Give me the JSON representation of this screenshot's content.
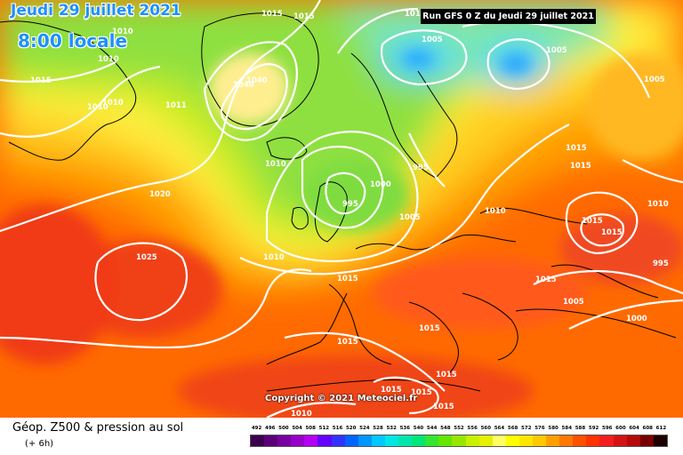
{
  "header": {
    "date": "Jeudi 29 juillet 2021",
    "time": "8:00 locale",
    "run": "Run GFS 0 Z du Jeudi 29 juillet 2021"
  },
  "footer": {
    "title": "Géop. Z500 & pression au sol",
    "offset": "(+ 6h)",
    "copyright": "Copyright © 2021 Meteociel.fr"
  },
  "legend": {
    "values": [
      "492",
      "496",
      "500",
      "504",
      "508",
      "512",
      "516",
      "520",
      "524",
      "528",
      "532",
      "536",
      "540",
      "544",
      "548",
      "552",
      "556",
      "560",
      "564",
      "568",
      "572",
      "576",
      "580",
      "584",
      "588",
      "592",
      "596",
      "600",
      "604",
      "608",
      "612"
    ],
    "colors": [
      "#3c0050",
      "#5a0078",
      "#7800a0",
      "#9600c8",
      "#b400f0",
      "#6400ff",
      "#3232ff",
      "#0064ff",
      "#0096ff",
      "#00c8ff",
      "#00e6e6",
      "#00e6aa",
      "#00e678",
      "#32e632",
      "#64e600",
      "#96e600",
      "#c8f000",
      "#e6f000",
      "#ffff64",
      "#ffff00",
      "#ffe600",
      "#ffc800",
      "#ffa000",
      "#ff7800",
      "#ff5000",
      "#ff3200",
      "#f01e1e",
      "#d21414",
      "#b40a0a",
      "#780000",
      "#1e0000"
    ]
  },
  "isobars": [
    {
      "text": "1010"
    },
    {
      "text": "1015"
    },
    {
      "text": "1015"
    },
    {
      "text": "1015"
    },
    {
      "text": "1005"
    },
    {
      "text": "1005"
    },
    {
      "text": "1005"
    },
    {
      "text": "1015"
    },
    {
      "text": "1010"
    },
    {
      "text": "1010"
    },
    {
      "text": "1010"
    },
    {
      "text": "1040"
    },
    {
      "text": "1040"
    },
    {
      "text": "1011"
    },
    {
      "text": "1015"
    },
    {
      "text": "1010"
    },
    {
      "text": "995"
    },
    {
      "text": "1000"
    },
    {
      "text": "995"
    },
    {
      "text": "1020"
    },
    {
      "text": "1005"
    },
    {
      "text": "1010"
    },
    {
      "text": "1015"
    },
    {
      "text": "1015"
    },
    {
      "text": "1015"
    },
    {
      "text": "1010"
    },
    {
      "text": "1025"
    },
    {
      "text": "1010"
    },
    {
      "text": "1015"
    },
    {
      "text": "995"
    },
    {
      "text": "1015"
    },
    {
      "text": "1005"
    },
    {
      "text": "1000"
    },
    {
      "text": "1015"
    },
    {
      "text": "1015"
    },
    {
      "text": "1015"
    },
    {
      "text": "1015"
    },
    {
      "text": "1015"
    },
    {
      "text": "1015"
    },
    {
      "text": "1010"
    }
  ]
}
